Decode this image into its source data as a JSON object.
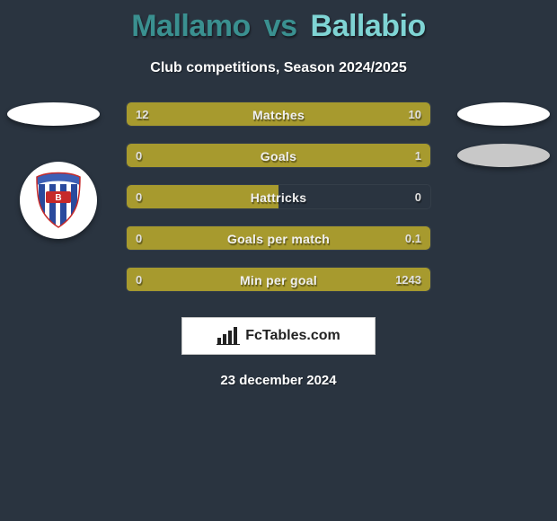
{
  "colors": {
    "background": "#2a3440",
    "bar": "#a79a2e",
    "title_dark": "#3a9090",
    "title_light": "#7fd4d4",
    "text": "#ffffff"
  },
  "title": {
    "player1": "Mallamo",
    "vs": "vs",
    "player2": "Ballabio"
  },
  "subtitle": "Club competitions, Season 2024/2025",
  "bars": [
    {
      "label": "Matches",
      "left_val": "12",
      "right_val": "10",
      "left_pct": 54.5,
      "right_pct": 45.5
    },
    {
      "label": "Goals",
      "left_val": "0",
      "right_val": "1",
      "left_pct": 18,
      "right_pct": 82
    },
    {
      "label": "Hattricks",
      "left_val": "0",
      "right_val": "0",
      "left_pct": 50,
      "right_pct": 0
    },
    {
      "label": "Goals per match",
      "left_val": "0",
      "right_val": "0.1",
      "left_pct": 0,
      "right_pct": 100
    },
    {
      "label": "Min per goal",
      "left_val": "0",
      "right_val": "1243",
      "left_pct": 0,
      "right_pct": 100
    }
  ],
  "branding": "FcTables.com",
  "date": "23 december 2024",
  "badge_colors": {
    "stripe_blue": "#2a4a9d",
    "stripe_red": "#c62a2a",
    "arc": "#3d5fb5"
  }
}
